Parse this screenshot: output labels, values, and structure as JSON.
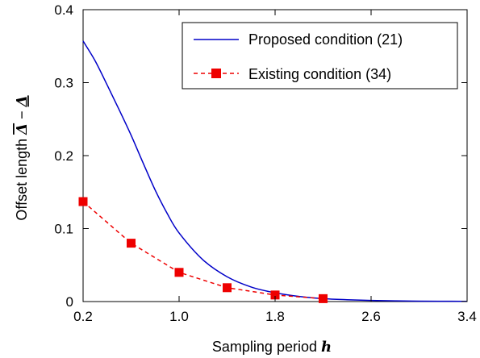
{
  "chart_data": {
    "type": "line",
    "xlabel": "Sampling period",
    "xlabel_symbol": "h",
    "ylabel": "Offset length",
    "ylabel_symbol_top": "Δ",
    "ylabel_symbol_minus": "−",
    "ylabel_symbol_bottom": "Δ",
    "xlim": [
      0.2,
      3.4
    ],
    "ylim": [
      0,
      0.4
    ],
    "xticks": [
      "0.2",
      "1.0",
      "1.8",
      "2.6",
      "3.4"
    ],
    "yticks": [
      "0",
      "0.1",
      "0.2",
      "0.3",
      "0.4"
    ],
    "legend_position": "top-right",
    "grid": false,
    "series": [
      {
        "name": "Proposed condition (21)",
        "color": "#0000c8",
        "style": "solid",
        "marker": "none",
        "x": [
          0.2,
          0.3,
          0.4,
          0.5,
          0.6,
          0.7,
          0.8,
          0.9,
          1.0,
          1.2,
          1.4,
          1.6,
          1.8,
          2.0,
          2.2,
          2.4,
          2.6,
          2.8,
          3.0,
          3.2,
          3.4
        ],
        "y": [
          0.357,
          0.33,
          0.297,
          0.263,
          0.228,
          0.19,
          0.153,
          0.121,
          0.094,
          0.057,
          0.034,
          0.02,
          0.012,
          0.007,
          0.004,
          0.0025,
          0.0015,
          0.001,
          0.0006,
          0.0004,
          0.0003
        ]
      },
      {
        "name": "Existing condition (34)",
        "color": "#ee0000",
        "style": "dashed",
        "marker": "square",
        "x": [
          0.2,
          0.6,
          1.0,
          1.4,
          1.8,
          2.2
        ],
        "y": [
          0.137,
          0.08,
          0.04,
          0.019,
          0.009,
          0.004
        ]
      }
    ]
  }
}
